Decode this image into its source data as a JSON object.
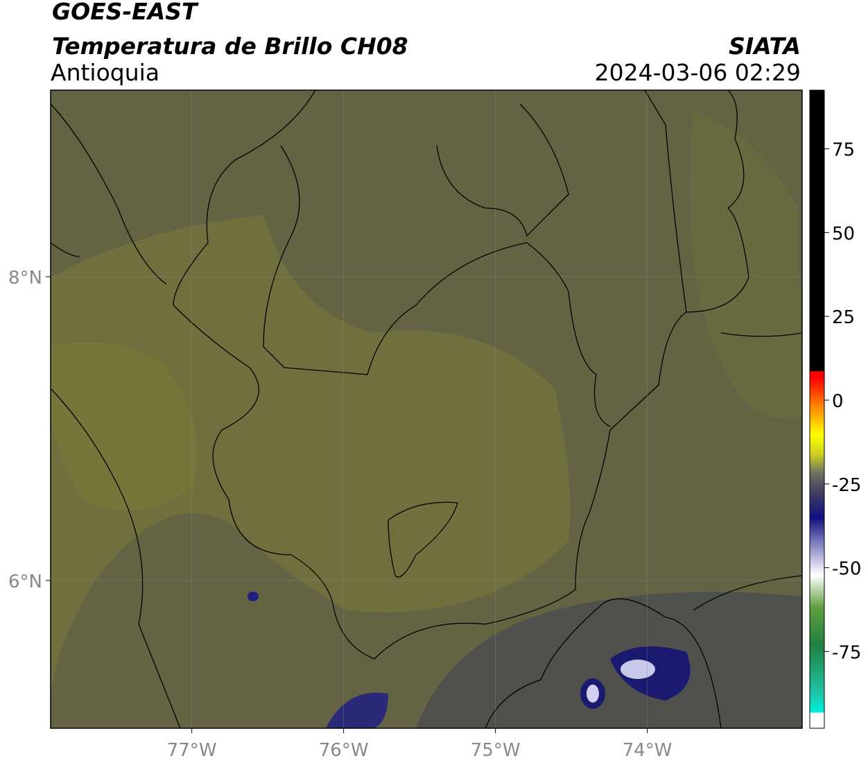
{
  "header": {
    "title": "GOES-EAST",
    "subtitle": "Temperatura de Brillo CH08",
    "region": "Antioquia",
    "source": "SIATA",
    "datetime": "2024-03-06 02:29"
  },
  "map": {
    "xlim": [
      -77.93,
      -72.98
    ],
    "ylim": [
      5.027,
      9.228
    ],
    "xticks": [
      {
        "value": -77,
        "label": "77°W"
      },
      {
        "value": -76,
        "label": "76°W"
      },
      {
        "value": -75,
        "label": "75°W"
      },
      {
        "value": -74,
        "label": "74°W"
      }
    ],
    "yticks": [
      {
        "value": 8,
        "label": "8°N"
      },
      {
        "value": 6,
        "label": "6°N"
      }
    ],
    "grid": true
  },
  "colorbar": {
    "lim": [
      -97.9,
      92.5
    ],
    "ticks": [
      75,
      50,
      25,
      0,
      -25,
      -50,
      -75
    ]
  }
}
